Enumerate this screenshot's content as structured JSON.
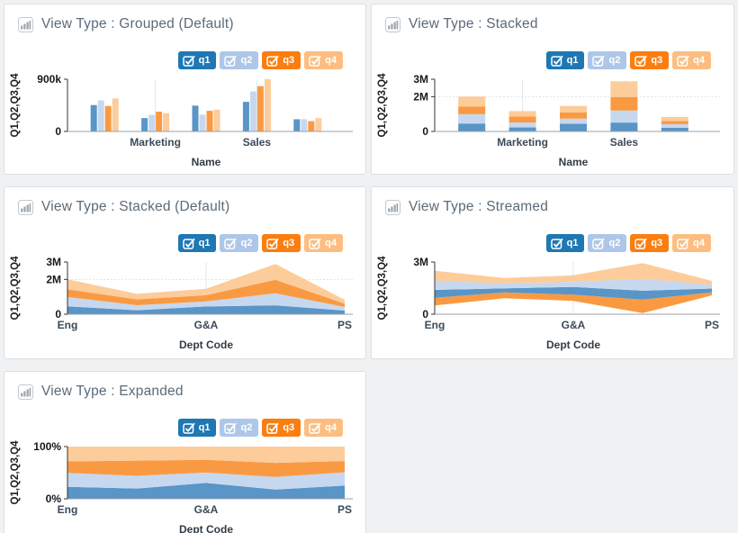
{
  "page": {
    "background": "#eff1f2",
    "panel_background": "#ffffff",
    "panel_border": "#dcdfe2",
    "title_color": "#5b6b78"
  },
  "legend": {
    "items": [
      {
        "label": "q1",
        "checked": true,
        "chip_color": "#1f77b4",
        "fill_color": "#5995c7",
        "text_color": "#ffffff"
      },
      {
        "label": "q2",
        "checked": true,
        "chip_color": "#aec7e8",
        "fill_color": "#c6d8ef",
        "text_color": "#ffffff"
      },
      {
        "label": "q3",
        "checked": true,
        "chip_color": "#fa7e10",
        "fill_color": "#f99a43",
        "text_color": "#ffffff"
      },
      {
        "label": "q4",
        "checked": true,
        "chip_color": "#fcbe80",
        "fill_color": "#fccc9a",
        "text_color": "#ffffff"
      }
    ]
  },
  "panels": [
    {
      "title": "View Type : Grouped (Default)"
    },
    {
      "title": "View Type : Stacked"
    },
    {
      "title": "View Type : Stacked (Default)"
    },
    {
      "title": "View Type : Streamed"
    },
    {
      "title": "View Type : Expanded"
    }
  ],
  "chart_data": [
    {
      "type": "bar",
      "variant": "grouped",
      "title": "View Type : Grouped (Default)",
      "xlabel": "Name",
      "ylabel": "Q1,Q2,Q3,Q4",
      "x_count": 5,
      "xticks": [
        {
          "i": 1,
          "label": "Marketing"
        },
        {
          "i": 3,
          "label": "Sales"
        }
      ],
      "yticks": [
        {
          "v": 900000,
          "label": "900k"
        },
        {
          "v": 0,
          "label": "0"
        }
      ],
      "ylim": [
        0,
        900000
      ],
      "grid_h": [],
      "legend_position": "top-right",
      "series": [
        {
          "name": "q1",
          "values": [
            455000,
            230000,
            445000,
            510000,
            210000
          ]
        },
        {
          "name": "q2",
          "values": [
            535000,
            285000,
            290000,
            690000,
            210000
          ]
        },
        {
          "name": "q3",
          "values": [
            440000,
            340000,
            355000,
            780000,
            178000
          ]
        },
        {
          "name": "q4",
          "values": [
            570000,
            315000,
            375000,
            900000,
            230000
          ]
        }
      ]
    },
    {
      "type": "bar",
      "variant": "stacked",
      "title": "View Type : Stacked",
      "xlabel": "Name",
      "ylabel": "Q1,Q2,Q3,Q4",
      "x_count": 5,
      "xticks": [
        {
          "i": 1,
          "label": "Marketing"
        },
        {
          "i": 3,
          "label": "Sales"
        }
      ],
      "yticks": [
        {
          "v": 3000000,
          "label": "3M"
        },
        {
          "v": 2000000,
          "label": "2M"
        },
        {
          "v": 0,
          "label": "0"
        }
      ],
      "ylim": [
        0,
        3000000
      ],
      "grid_h": [
        2000000
      ],
      "legend_position": "top-right",
      "series": [
        {
          "name": "q1",
          "values": [
            455000,
            230000,
            445000,
            510000,
            210000
          ]
        },
        {
          "name": "q2",
          "values": [
            535000,
            285000,
            290000,
            690000,
            210000
          ]
        },
        {
          "name": "q3",
          "values": [
            440000,
            340000,
            355000,
            780000,
            178000
          ]
        },
        {
          "name": "q4",
          "values": [
            570000,
            315000,
            375000,
            900000,
            230000
          ]
        }
      ]
    },
    {
      "type": "area",
      "variant": "stacked",
      "title": "View Type : Stacked (Default)",
      "xlabel": "Dept Code",
      "ylabel": "Q1,Q2,Q3,Q4",
      "x_count": 5,
      "xticks": [
        {
          "i": 0,
          "label": "Eng"
        },
        {
          "i": 2,
          "label": "G&A"
        },
        {
          "i": 4,
          "label": "PS"
        }
      ],
      "yticks": [
        {
          "v": 3000000,
          "label": "3M"
        },
        {
          "v": 2000000,
          "label": "2M"
        },
        {
          "v": 0,
          "label": "0"
        }
      ],
      "ylim": [
        0,
        3000000
      ],
      "grid_h": [
        2000000
      ],
      "legend_position": "top-right",
      "series": [
        {
          "name": "q1",
          "values": [
            455000,
            230000,
            445000,
            510000,
            210000
          ]
        },
        {
          "name": "q2",
          "values": [
            535000,
            285000,
            290000,
            690000,
            210000
          ]
        },
        {
          "name": "q3",
          "values": [
            440000,
            340000,
            355000,
            780000,
            178000
          ]
        },
        {
          "name": "q4",
          "values": [
            570000,
            315000,
            375000,
            900000,
            230000
          ]
        }
      ]
    },
    {
      "type": "area",
      "variant": "streamed",
      "title": "View Type : Streamed",
      "xlabel": "Dept Code",
      "ylabel": "Q1,Q2,Q3,Q4",
      "x_count": 5,
      "xticks": [
        {
          "i": 0,
          "label": "Eng"
        },
        {
          "i": 2,
          "label": "G&A"
        },
        {
          "i": 4,
          "label": "PS"
        }
      ],
      "yticks": [
        {
          "v": 3000000,
          "label": "3M"
        },
        {
          "v": 0,
          "label": "0"
        }
      ],
      "ylim": [
        0,
        3000000
      ],
      "grid_h": [],
      "legend_position": "top-right",
      "stream_order": [
        "q3",
        "q1",
        "q2",
        "q4"
      ],
      "series": [
        {
          "name": "q1",
          "values": [
            455000,
            230000,
            445000,
            510000,
            210000
          ]
        },
        {
          "name": "q2",
          "values": [
            535000,
            285000,
            290000,
            690000,
            210000
          ]
        },
        {
          "name": "q3",
          "values": [
            440000,
            340000,
            355000,
            780000,
            178000
          ]
        },
        {
          "name": "q4",
          "values": [
            570000,
            315000,
            375000,
            900000,
            230000
          ]
        }
      ]
    },
    {
      "type": "area",
      "variant": "expanded",
      "title": "View Type : Expanded",
      "xlabel": "Dept Code",
      "ylabel": "Q1,Q2,Q3,Q4",
      "x_count": 5,
      "xticks": [
        {
          "i": 0,
          "label": "Eng"
        },
        {
          "i": 2,
          "label": "G&A"
        },
        {
          "i": 4,
          "label": "PS"
        }
      ],
      "yticks": [
        {
          "v": 100,
          "label": "100%"
        },
        {
          "v": 0,
          "label": "0%"
        }
      ],
      "ylim": [
        0,
        100
      ],
      "normalized": true,
      "grid_h": [],
      "legend_position": "top-right",
      "series": [
        {
          "name": "q1",
          "values": [
            455000,
            230000,
            445000,
            510000,
            210000
          ]
        },
        {
          "name": "q2",
          "values": [
            535000,
            285000,
            290000,
            690000,
            210000
          ]
        },
        {
          "name": "q3",
          "values": [
            440000,
            340000,
            355000,
            780000,
            178000
          ]
        },
        {
          "name": "q4",
          "values": [
            570000,
            315000,
            375000,
            900000,
            230000
          ]
        }
      ]
    }
  ]
}
